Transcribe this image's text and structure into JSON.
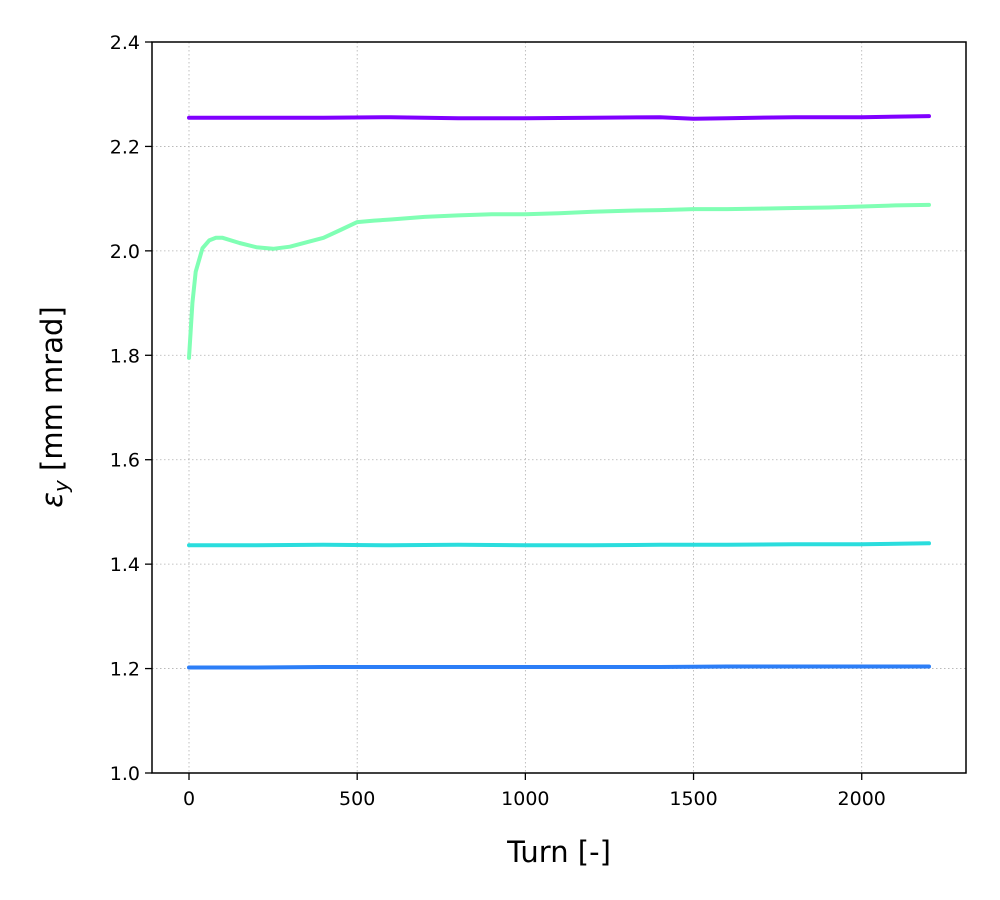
{
  "chart_data": {
    "type": "line",
    "title": "",
    "xlabel": "Turn [-]",
    "ylabel_symbol": "ε",
    "ylabel_subscript": "y",
    "ylabel_unit": " [mm mrad]",
    "xlim": [
      -110,
      2310
    ],
    "ylim": [
      1.0,
      2.4
    ],
    "xticks": [
      0,
      500,
      1000,
      1500,
      2000
    ],
    "yticks": [
      1.0,
      1.2,
      1.4,
      1.6,
      1.8,
      2.0,
      2.2,
      2.4
    ],
    "xtick_labels": [
      "0",
      "500",
      "1000",
      "1500",
      "2000"
    ],
    "ytick_labels": [
      "1.0",
      "1.2",
      "1.4",
      "1.6",
      "1.8",
      "2.0",
      "2.2",
      "2.4"
    ],
    "grid": true,
    "legend": "none",
    "series": [
      {
        "color": "#8000ff",
        "x": [
          0,
          200,
          400,
          600,
          800,
          1000,
          1200,
          1400,
          1500,
          1600,
          1800,
          2000,
          2200
        ],
        "y": [
          2.255,
          2.255,
          2.255,
          2.256,
          2.254,
          2.254,
          2.255,
          2.256,
          2.253,
          2.254,
          2.256,
          2.256,
          2.258
        ]
      },
      {
        "color": "#80ffb4",
        "x": [
          0,
          10,
          20,
          40,
          60,
          80,
          100,
          150,
          200,
          250,
          300,
          400,
          450,
          500,
          550,
          600,
          700,
          800,
          900,
          1000,
          1100,
          1200,
          1300,
          1400,
          1500,
          1600,
          1700,
          1800,
          1900,
          2000,
          2100,
          2200
        ],
        "y": [
          1.795,
          1.9,
          1.96,
          2.005,
          2.02,
          2.025,
          2.025,
          2.015,
          2.007,
          2.004,
          2.008,
          2.025,
          2.04,
          2.055,
          2.058,
          2.06,
          2.065,
          2.068,
          2.07,
          2.07,
          2.072,
          2.075,
          2.077,
          2.078,
          2.08,
          2.08,
          2.081,
          2.082,
          2.083,
          2.085,
          2.087,
          2.088
        ]
      },
      {
        "color": "#2adddd",
        "x": [
          0,
          200,
          400,
          600,
          800,
          1000,
          1200,
          1400,
          1600,
          1800,
          2000,
          2200
        ],
        "y": [
          1.436,
          1.436,
          1.437,
          1.436,
          1.437,
          1.436,
          1.436,
          1.437,
          1.437,
          1.438,
          1.438,
          1.44
        ]
      },
      {
        "color": "#2c7ef7",
        "x": [
          0,
          200,
          400,
          600,
          800,
          1000,
          1200,
          1400,
          1600,
          1800,
          2000,
          2200
        ],
        "y": [
          1.202,
          1.202,
          1.203,
          1.203,
          1.203,
          1.203,
          1.203,
          1.203,
          1.204,
          1.204,
          1.204,
          1.204
        ]
      }
    ]
  }
}
